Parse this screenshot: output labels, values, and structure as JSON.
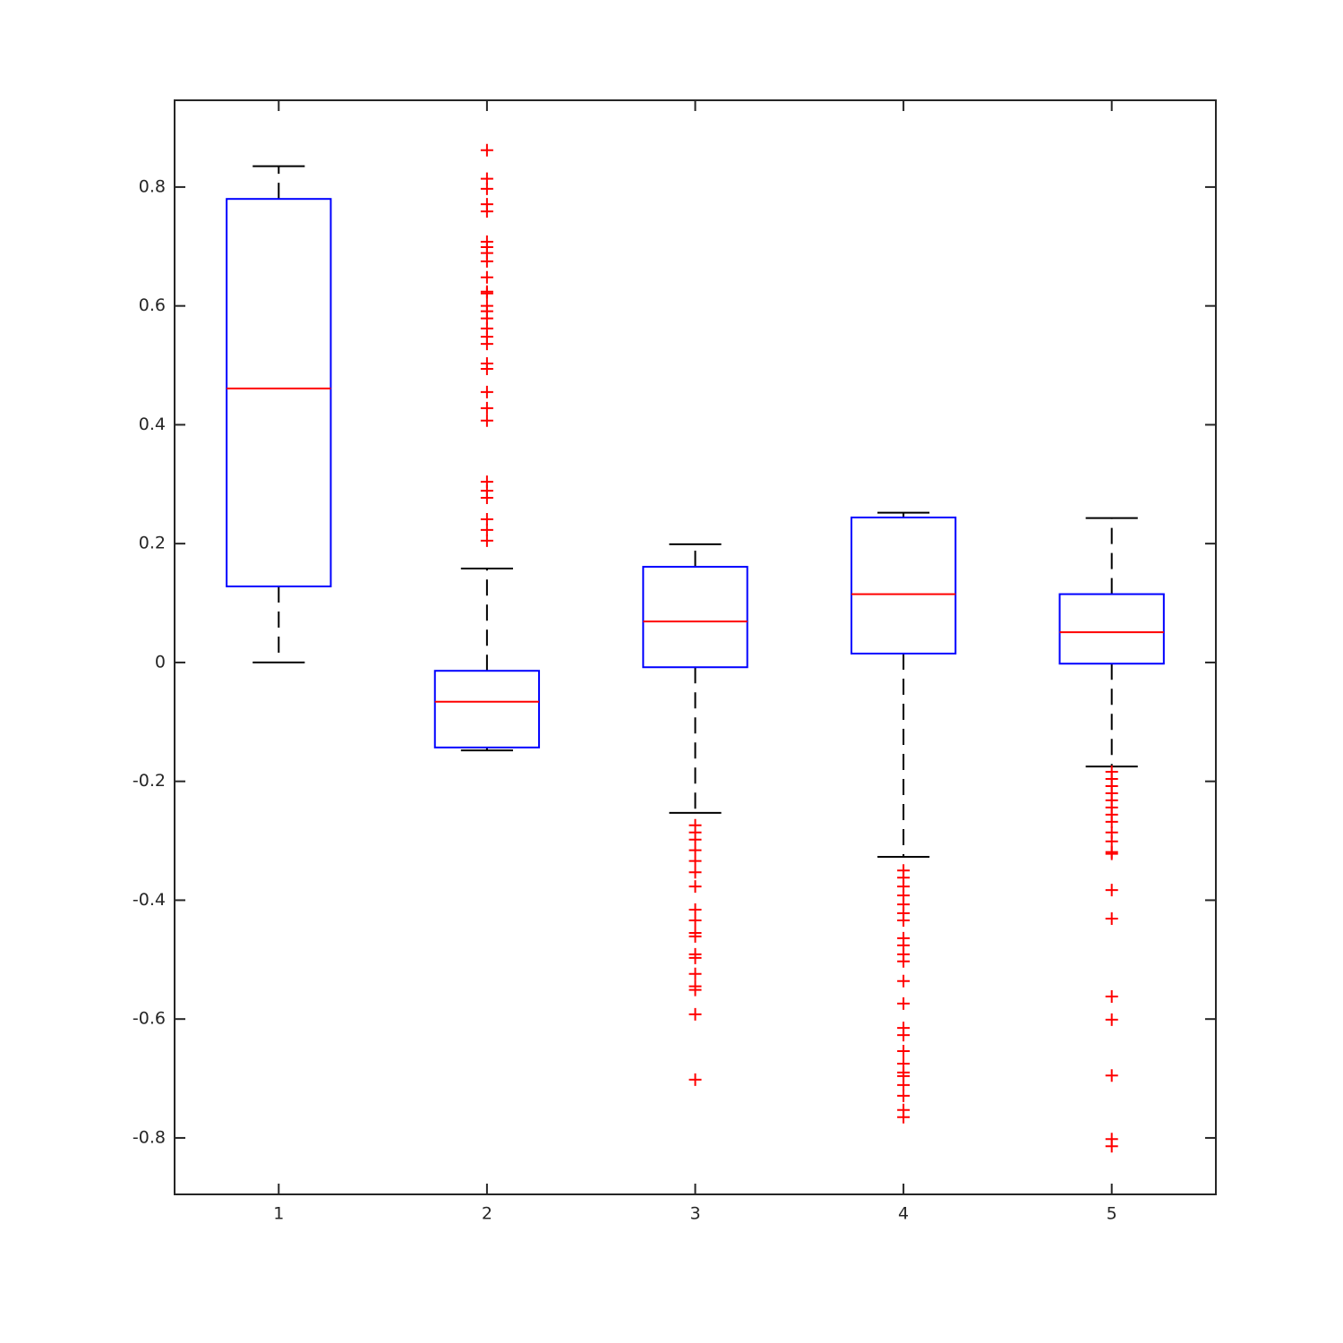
{
  "chart_data": {
    "type": "box",
    "categories": [
      "1",
      "2",
      "3",
      "4",
      "5"
    ],
    "boxes": [
      {
        "min": 0,
        "q1": 0.128,
        "median": 0.461,
        "q3": 0.78,
        "max": 0.835,
        "outliers": []
      },
      {
        "min": -0.148,
        "q1": -0.143,
        "median": -0.066,
        "q3": -0.014,
        "max": 0.158,
        "outliers": [
          0.862,
          0.814,
          0.797,
          0.771,
          0.759,
          0.708,
          0.699,
          0.689,
          0.675,
          0.648,
          0.624,
          0.621,
          0.6,
          0.591,
          0.579,
          0.562,
          0.548,
          0.536,
          0.503,
          0.494,
          0.455,
          0.428,
          0.407,
          0.304,
          0.289,
          0.277,
          0.241,
          0.223,
          0.205
        ]
      },
      {
        "min": -0.253,
        "q1": -0.008,
        "median": 0.069,
        "q3": 0.161,
        "max": 0.199,
        "outliers": [
          -0.274,
          -0.286,
          -0.298,
          -0.316,
          -0.334,
          -0.353,
          -0.377,
          -0.416,
          -0.434,
          -0.455,
          -0.461,
          -0.491,
          -0.497,
          -0.524,
          -0.545,
          -0.551,
          -0.592,
          -0.702
        ]
      },
      {
        "min": -0.327,
        "q1": 0.015,
        "median": 0.115,
        "q3": 0.244,
        "max": 0.252,
        "outliers": [
          -0.35,
          -0.362,
          -0.377,
          -0.392,
          -0.407,
          -0.422,
          -0.434,
          -0.464,
          -0.476,
          -0.491,
          -0.503,
          -0.536,
          -0.574,
          -0.615,
          -0.627,
          -0.654,
          -0.675,
          -0.69,
          -0.696,
          -0.711,
          -0.729,
          -0.753,
          -0.765
        ]
      },
      {
        "min": -0.175,
        "q1": -0.002,
        "median": 0.051,
        "q3": 0.115,
        "max": 0.243,
        "outliers": [
          -0.184,
          -0.196,
          -0.208,
          -0.22,
          -0.232,
          -0.244,
          -0.256,
          -0.268,
          -0.286,
          -0.301,
          -0.319,
          -0.322,
          -0.383,
          -0.431,
          -0.562,
          -0.601,
          -0.695,
          -0.802,
          -0.814
        ]
      }
    ],
    "box_color": "#0000ff",
    "median_color": "#ff0000",
    "whisker_color": "#000000",
    "outlier_color": "#ff0000",
    "ylim": [
      -0.895,
      0.946
    ],
    "yticks": [
      -0.8,
      -0.6,
      -0.4,
      -0.2,
      0,
      0.2,
      0.4,
      0.6,
      0.8
    ]
  }
}
